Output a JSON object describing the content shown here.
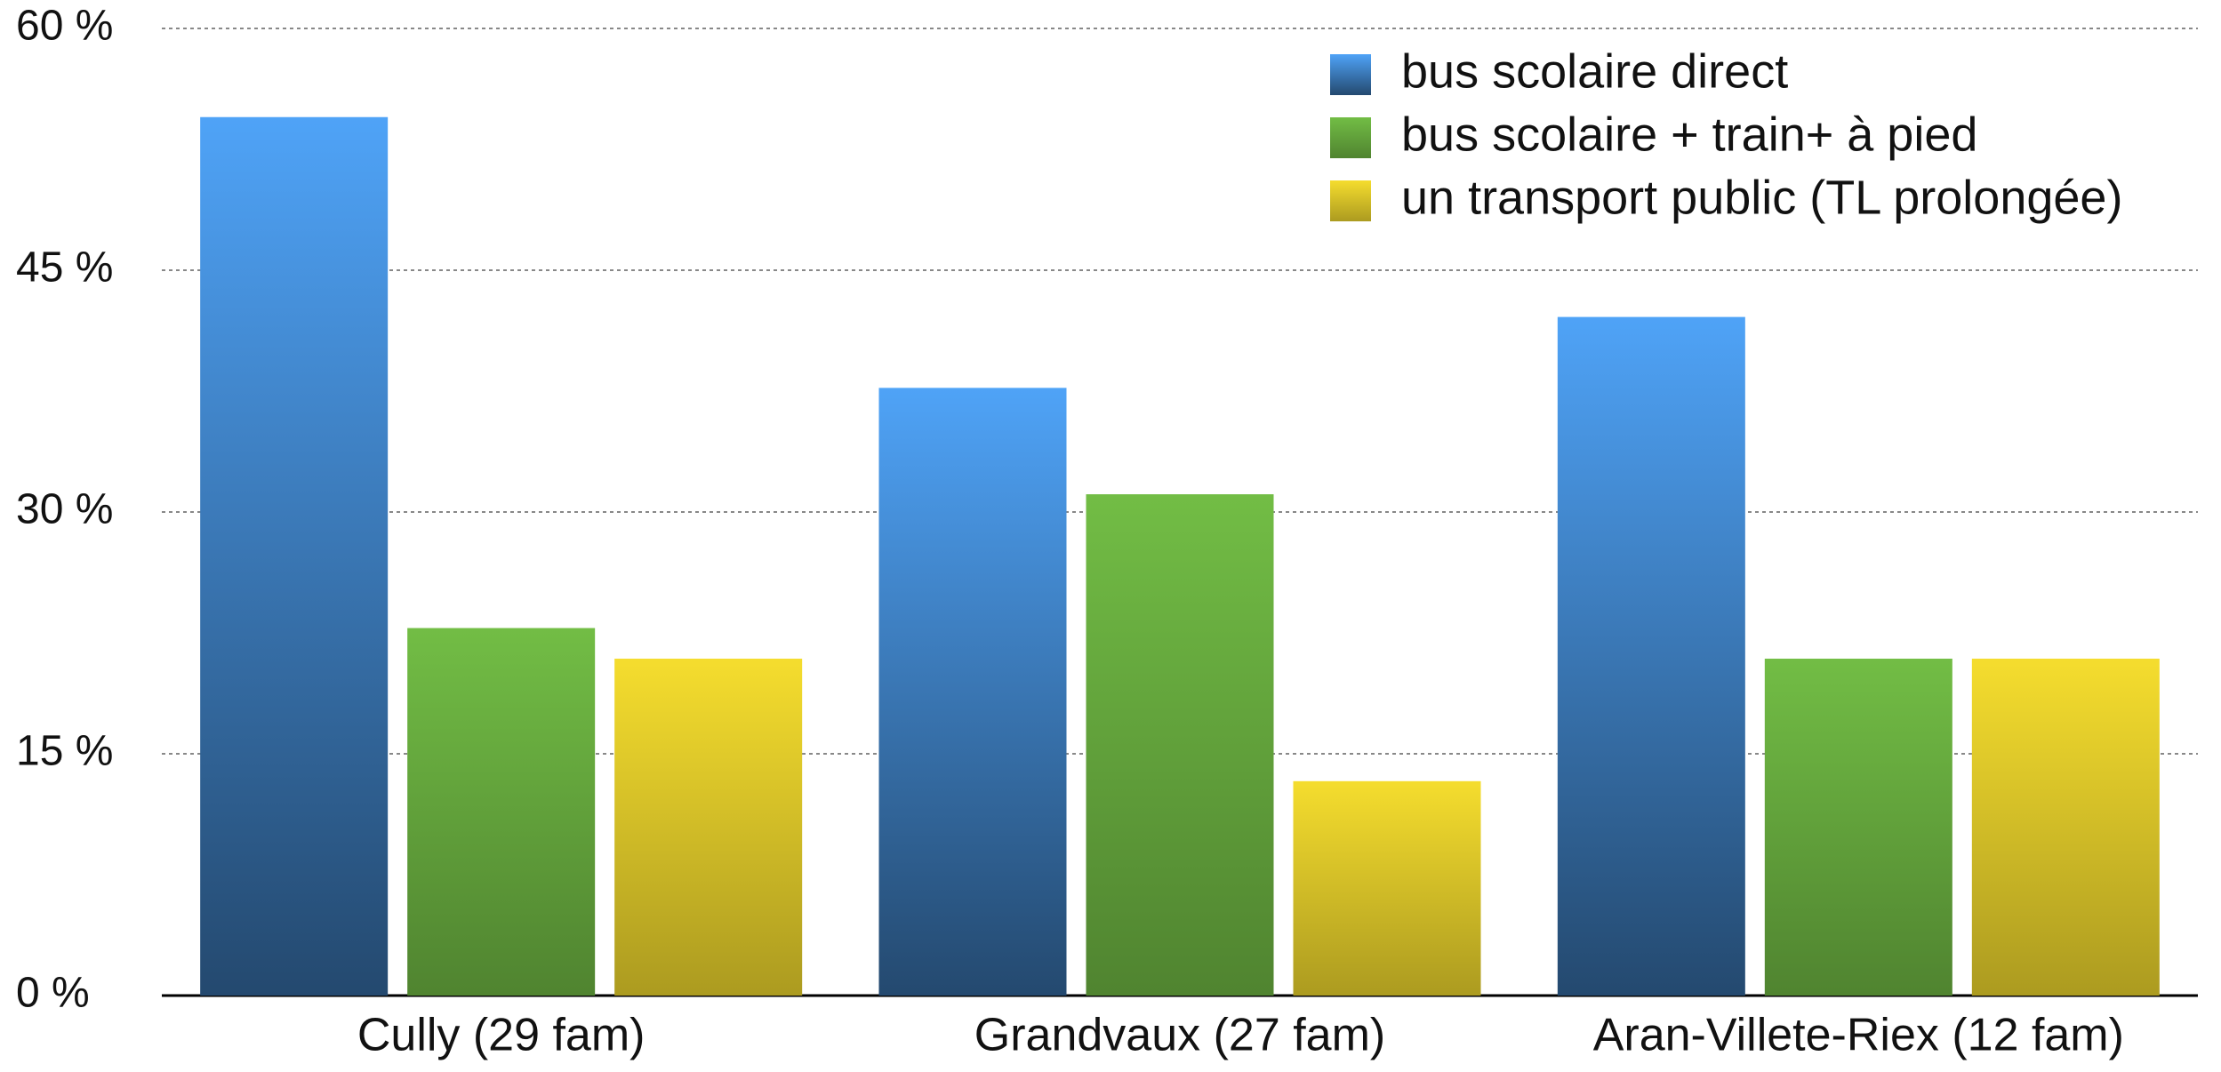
{
  "chart_data": {
    "type": "bar",
    "categories": [
      "Cully (29 fam)",
      "Grandvaux (27 fam)",
      "Aran-Villete-Riex (12 fam)"
    ],
    "series": [
      {
        "name": "bus scolaire direct",
        "color": "#4fa3f7",
        "values": [
          54.5,
          37.7,
          42.1
        ]
      },
      {
        "name": "bus scolaire + train+ à pied",
        "color": "#72bd45",
        "values": [
          22.8,
          31.1,
          20.9
        ]
      },
      {
        "name": "un transport public (TL prolongée)",
        "color": "#f5dd2e",
        "values": [
          20.9,
          13.3,
          20.9
        ]
      }
    ],
    "ylim": [
      0,
      60
    ],
    "yticks": [
      {
        "value": 0,
        "label": "0 %"
      },
      {
        "value": 15,
        "label": "15 %"
      },
      {
        "value": 30,
        "label": "30 %"
      },
      {
        "value": 45,
        "label": "45 %"
      },
      {
        "value": 60,
        "label": "60 %"
      }
    ],
    "grid": true,
    "legend": "top-right"
  }
}
